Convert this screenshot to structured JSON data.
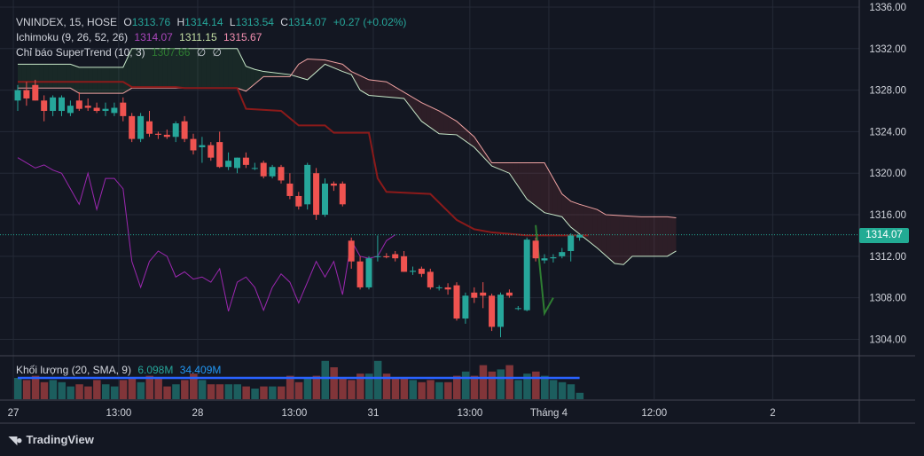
{
  "legend": {
    "symbol": "VNINDEX, 15, HOSE",
    "o_label": "O",
    "o_value": "1313.76",
    "h_label": "H",
    "h_value": "1314.14",
    "l_label": "L",
    "l_value": "1313.54",
    "c_label": "C",
    "c_value": "1314.07",
    "change": "+0.27 (+0.02%)",
    "ichimoku_label": "Ichimoku (9, 26, 52, 26)",
    "ichimoku_v1": "1314.07",
    "ichimoku_v2": "1311.15",
    "ichimoku_v3": "1315.67",
    "supertrend_label": "Chỉ báo SuperTrend (10, 3)",
    "supertrend_v1": "1307.66",
    "supertrend_v2": "∅",
    "supertrend_v3": "∅",
    "volume_label": "Khối lượng (20, SMA, 9)",
    "volume_v1": "6.098M",
    "volume_v2": "34.409M"
  },
  "current_price": "1314.07",
  "brand": "TradingView",
  "colors": {
    "up": "#26a69a",
    "down": "#ef5350",
    "kijun": "#8b1a1a",
    "lagging": "#9c27b0",
    "cloud_top": "#c7e8c9",
    "cloud_bot": "#f0a3a3",
    "supertrend": "#2e7d32",
    "vol_sma": "#2962ff"
  },
  "chart_data": {
    "type": "candlestick",
    "ylim": [
      1302.5,
      1336
    ],
    "y_ticks": [
      1304,
      1308,
      1312,
      1316,
      1320,
      1324,
      1328,
      1332,
      1336
    ],
    "y_tick_labels": [
      "1304.00",
      "1308.00",
      "1312.00",
      "1316.00",
      "1320.00",
      "1324.00",
      "1328.00",
      "1332.00",
      "1336.00"
    ],
    "x_tick_labels": [
      {
        "label": "27",
        "bar": -0.5
      },
      {
        "label": "13:00",
        "bar": 11.5
      },
      {
        "label": "28",
        "bar": 20.5
      },
      {
        "label": "13:00",
        "bar": 31.5
      },
      {
        "label": "31",
        "bar": 40.5
      },
      {
        "label": "13:00",
        "bar": 51.5
      },
      {
        "label": "Tháng 4",
        "bar": 60.5
      },
      {
        "label": "12:00",
        "bar": 72.5
      },
      {
        "label": "2",
        "bar": 86
      }
    ],
    "candles": [
      [
        1327.0,
        1328.5,
        1326.0,
        1328.0
      ],
      [
        1328.0,
        1328.8,
        1326.5,
        1327.2
      ],
      [
        1328.5,
        1329.0,
        1327.0,
        1327.0
      ],
      [
        1327.0,
        1327.5,
        1325.0,
        1326.0
      ],
      [
        1326.0,
        1327.5,
        1325.5,
        1327.3
      ],
      [
        1326.0,
        1327.5,
        1325.5,
        1327.3
      ],
      [
        1325.8,
        1327.0,
        1325.5,
        1326.5
      ],
      [
        1327.0,
        1327.8,
        1326.0,
        1326.2
      ],
      [
        1326.5,
        1327.2,
        1326.0,
        1326.3
      ],
      [
        1326.3,
        1326.8,
        1325.8,
        1326.0
      ],
      [
        1326.0,
        1326.8,
        1325.5,
        1326.2
      ],
      [
        1325.8,
        1326.8,
        1325.5,
        1326.3
      ],
      [
        1326.8,
        1327.3,
        1325.0,
        1325.5
      ],
      [
        1325.5,
        1325.8,
        1323.0,
        1323.3
      ],
      [
        1323.3,
        1325.8,
        1323.0,
        1325.5
      ],
      [
        1325.0,
        1326.0,
        1323.5,
        1323.8
      ],
      [
        1323.8,
        1324.0,
        1323.3,
        1323.7
      ],
      [
        1323.7,
        1324.2,
        1323.3,
        1323.5
      ],
      [
        1323.5,
        1325.0,
        1323.0,
        1324.8
      ],
      [
        1325.0,
        1325.5,
        1323.0,
        1323.3
      ],
      [
        1323.3,
        1323.8,
        1321.8,
        1322.2
      ],
      [
        1322.5,
        1323.5,
        1321.0,
        1322.7
      ],
      [
        1322.7,
        1323.0,
        1321.2,
        1321.5
      ],
      [
        1323.0,
        1324.0,
        1320.5,
        1320.6
      ],
      [
        1320.6,
        1322.0,
        1320.3,
        1321.2
      ],
      [
        1320.5,
        1321.5,
        1320.0,
        1321.5
      ],
      [
        1321.5,
        1322.0,
        1320.5,
        1320.8
      ],
      [
        1320.5,
        1321.0,
        1320.3,
        1320.5
      ],
      [
        1321.0,
        1321.2,
        1319.5,
        1319.7
      ],
      [
        1319.7,
        1320.8,
        1319.5,
        1320.6
      ],
      [
        1320.6,
        1320.8,
        1319.0,
        1319.3
      ],
      [
        1319.0,
        1320.0,
        1317.5,
        1317.8
      ],
      [
        1317.8,
        1318.2,
        1316.5,
        1316.8
      ],
      [
        1317.0,
        1321.0,
        1316.5,
        1320.8
      ],
      [
        1320.0,
        1320.5,
        1315.5,
        1316.0
      ],
      [
        1316.0,
        1319.5,
        1315.8,
        1319.0
      ],
      [
        1319.0,
        1319.2,
        1318.3,
        1318.8
      ],
      [
        1319.0,
        1319.2,
        1316.8,
        1317.0
      ],
      [
        1313.5,
        1313.8,
        1310.8,
        1311.5
      ],
      [
        1311.5,
        1312.0,
        1308.8,
        1309.0
      ],
      [
        1309.0,
        1312.0,
        1308.8,
        1311.8
      ],
      [
        1312.0,
        1314.0,
        1311.5,
        1312.0
      ],
      [
        1312.0,
        1312.3,
        1311.8,
        1311.9
      ],
      [
        1312.2,
        1312.5,
        1311.5,
        1311.8
      ],
      [
        1312.0,
        1312.5,
        1310.5,
        1310.5
      ],
      [
        1310.5,
        1311.0,
        1310.2,
        1310.6
      ],
      [
        1310.8,
        1311.0,
        1310.0,
        1310.3
      ],
      [
        1310.5,
        1310.8,
        1308.8,
        1309.0
      ],
      [
        1309.0,
        1309.2,
        1308.7,
        1309.0
      ],
      [
        1309.0,
        1309.4,
        1308.3,
        1308.8
      ],
      [
        1309.2,
        1309.5,
        1305.8,
        1306.0
      ],
      [
        1306.0,
        1308.5,
        1305.5,
        1308.2
      ],
      [
        1308.5,
        1309.0,
        1307.5,
        1308.0
      ],
      [
        1308.5,
        1309.5,
        1307.0,
        1308.2
      ],
      [
        1308.2,
        1308.4,
        1304.8,
        1305.2
      ],
      [
        1305.2,
        1308.5,
        1304.2,
        1308.3
      ],
      [
        1308.5,
        1308.8,
        1308.0,
        1308.2
      ],
      [
        1307.0,
        1307.2,
        1306.8,
        1307.0
      ],
      [
        1306.8,
        1313.8,
        1306.7,
        1313.6
      ],
      [
        1313.5,
        1313.8,
        1311.5,
        1311.8
      ],
      [
        1311.6,
        1312.2,
        1311.3,
        1311.8
      ],
      [
        1311.8,
        1312.2,
        1311.4,
        1311.9
      ],
      [
        1312.0,
        1312.8,
        1311.8,
        1312.4
      ],
      [
        1312.5,
        1314.2,
        1311.5,
        1314.0
      ],
      [
        1313.8,
        1314.1,
        1313.5,
        1314.07
      ]
    ],
    "volume": [
      5,
      4.5,
      5.5,
      4,
      4.5,
      4,
      3,
      3.5,
      3,
      4.5,
      3.5,
      3,
      4.5,
      5,
      4,
      5.5,
      5,
      3,
      3.5,
      4.5,
      6,
      4.5,
      3.5,
      3.5,
      3.5,
      3.5,
      3,
      2.5,
      3,
      3,
      3,
      5.5,
      4,
      5,
      5.5,
      9,
      7.5,
      5,
      4.5,
      6,
      6,
      9,
      6,
      5,
      5,
      4.5,
      4,
      4.5,
      4,
      4,
      5.5,
      6.5,
      5.5,
      8,
      6.5,
      7,
      8,
      4.5,
      6,
      6.5,
      5.5,
      4.5,
      4,
      3.5,
      1.5
    ],
    "volume_sma": [
      5,
      5,
      5,
      5,
      5,
      5,
      5,
      5,
      5,
      5,
      5,
      5,
      5,
      5,
      5,
      5,
      5,
      5,
      5,
      5,
      5,
      5,
      5,
      5,
      5,
      5,
      5,
      5,
      5,
      5,
      5,
      5,
      5,
      5,
      5,
      5,
      5,
      5,
      5,
      5,
      5,
      5,
      5,
      5,
      5,
      5,
      5,
      5,
      5,
      5,
      5,
      5,
      5,
      5,
      5,
      5,
      5,
      5,
      5,
      5,
      5,
      5,
      5,
      5,
      5
    ],
    "vol_max": 10,
    "kijun": [
      [
        0,
        1328.8
      ],
      [
        12,
        1328.8
      ],
      [
        13,
        1328.3
      ],
      [
        18,
        1328.3
      ],
      [
        19,
        1328.2
      ],
      [
        25,
        1328.2
      ],
      [
        26,
        1326.2
      ],
      [
        30,
        1326.0
      ],
      [
        32,
        1324.6
      ],
      [
        35,
        1324.6
      ],
      [
        36,
        1323.9
      ],
      [
        40,
        1323.9
      ],
      [
        41,
        1319.5
      ],
      [
        42,
        1318.2
      ],
      [
        47,
        1318.0
      ],
      [
        50,
        1315.5
      ],
      [
        52,
        1314.6
      ],
      [
        54,
        1314.3
      ],
      [
        58,
        1314.0
      ],
      [
        65,
        1314.0
      ]
    ],
    "lagging": [
      [
        0,
        1321.5
      ],
      [
        1,
        1321.0
      ],
      [
        2,
        1320.5
      ],
      [
        3,
        1320.8
      ],
      [
        4,
        1320.3
      ],
      [
        5,
        1320.0
      ],
      [
        6,
        1318.5
      ],
      [
        7,
        1317.0
      ],
      [
        8,
        1320.0
      ],
      [
        9,
        1316.5
      ],
      [
        10,
        1319.5
      ],
      [
        11,
        1319.5
      ],
      [
        12,
        1318.5
      ],
      [
        13,
        1311.5
      ],
      [
        14,
        1309.0
      ],
      [
        15,
        1311.5
      ],
      [
        16,
        1312.5
      ],
      [
        17,
        1312.0
      ],
      [
        18,
        1310.0
      ],
      [
        19,
        1310.5
      ],
      [
        20,
        1309.8
      ],
      [
        21,
        1310.0
      ],
      [
        22,
        1309.5
      ],
      [
        23,
        1310.8
      ],
      [
        24,
        1306.7
      ],
      [
        25,
        1309.5
      ],
      [
        26,
        1310.0
      ],
      [
        27,
        1309.0
      ],
      [
        28,
        1306.8
      ],
      [
        29,
        1309.0
      ],
      [
        30,
        1310.3
      ],
      [
        31,
        1309.5
      ],
      [
        32,
        1307.5
      ],
      [
        33,
        1309.5
      ],
      [
        34,
        1311.5
      ],
      [
        35,
        1310.0
      ],
      [
        36,
        1311.5
      ],
      [
        37,
        1308.3
      ],
      [
        38,
        1313.5
      ],
      [
        39,
        1312.0
      ],
      [
        40,
        1311.8
      ],
      [
        41,
        1312.0
      ],
      [
        42,
        1313.5
      ],
      [
        43,
        1314.07
      ]
    ],
    "cloud_a": [
      [
        0,
        1330.5
      ],
      [
        6,
        1330.5
      ],
      [
        7,
        1330.2
      ],
      [
        12,
        1330.2
      ],
      [
        13,
        1332.0
      ],
      [
        25,
        1332.0
      ],
      [
        26,
        1330.3
      ],
      [
        27,
        1330.0
      ],
      [
        28,
        1329.8
      ],
      [
        31,
        1329.5
      ],
      [
        33,
        1329.0
      ],
      [
        35,
        1330.5
      ],
      [
        37,
        1329.8
      ],
      [
        38,
        1329.5
      ],
      [
        39,
        1328.0
      ],
      [
        40,
        1327.5
      ],
      [
        44,
        1327.2
      ],
      [
        46,
        1325.0
      ],
      [
        48,
        1323.8
      ],
      [
        50,
        1323.7
      ],
      [
        52,
        1322.5
      ],
      [
        54,
        1320.7
      ],
      [
        56,
        1320.0
      ],
      [
        58,
        1317.5
      ],
      [
        60,
        1316.2
      ],
      [
        62,
        1315.8
      ],
      [
        63,
        1314.8
      ],
      [
        66,
        1312.8
      ],
      [
        68,
        1311.3
      ],
      [
        69,
        1311.2
      ],
      [
        70,
        1312.0
      ],
      [
        72,
        1312.0
      ],
      [
        74,
        1312.0
      ],
      [
        75,
        1312.5
      ]
    ],
    "cloud_b": [
      [
        0,
        1328.2
      ],
      [
        6,
        1328.2
      ],
      [
        7,
        1327.7
      ],
      [
        12,
        1327.7
      ],
      [
        13,
        1328.2
      ],
      [
        25,
        1328.2
      ],
      [
        26,
        1327.9
      ],
      [
        27,
        1328.6
      ],
      [
        28,
        1329.3
      ],
      [
        31,
        1329.3
      ],
      [
        32,
        1330.5
      ],
      [
        33,
        1331.0
      ],
      [
        35,
        1330.9
      ],
      [
        37,
        1330.5
      ],
      [
        38,
        1329.8
      ],
      [
        40,
        1329.0
      ],
      [
        42,
        1328.8
      ],
      [
        46,
        1326.8
      ],
      [
        48,
        1326.0
      ],
      [
        50,
        1325.0
      ],
      [
        52,
        1323.5
      ],
      [
        54,
        1321.0
      ],
      [
        56,
        1321.0
      ],
      [
        58,
        1321.0
      ],
      [
        60,
        1321.0
      ],
      [
        62,
        1318.0
      ],
      [
        63,
        1317.3
      ],
      [
        64,
        1317.0
      ],
      [
        66,
        1316.5
      ],
      [
        67,
        1316.0
      ],
      [
        69,
        1315.9
      ],
      [
        71,
        1315.8
      ],
      [
        74,
        1315.8
      ],
      [
        75,
        1315.7
      ]
    ],
    "supertrend": [
      [
        59,
        1315.0
      ],
      [
        60,
        1306.5
      ],
      [
        61,
        1308.0
      ]
    ]
  }
}
